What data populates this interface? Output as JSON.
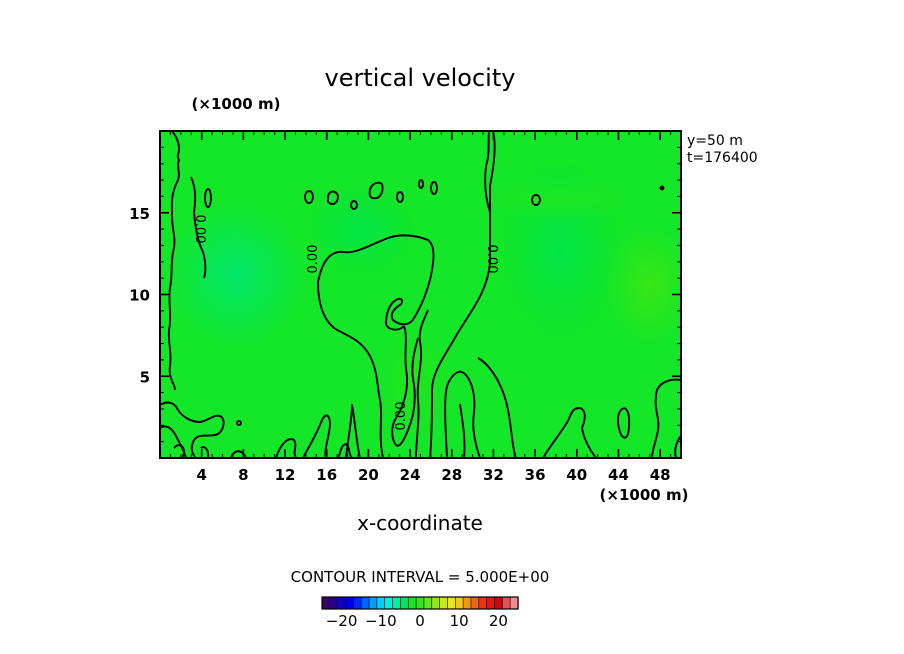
{
  "chart_data": {
    "type": "heatmap",
    "title": "vertical velocity",
    "xlabel": "x-coordinate",
    "x_unit": "(×1000 m)",
    "y_unit": "(×1000 m)",
    "xlim": [
      0,
      50
    ],
    "ylim": [
      0,
      20
    ],
    "xticks": [
      4,
      8,
      12,
      16,
      20,
      24,
      28,
      32,
      36,
      40,
      44,
      48
    ],
    "yticks": [
      5,
      10,
      15
    ],
    "info": [
      "y=50  m",
      "t=176400"
    ],
    "contour_interval_label": "CONTOUR INTERVAL = 5.000E+00",
    "contour_label": "0.00",
    "colorbar": {
      "range": [
        -25,
        25
      ],
      "tick_values": [
        -20,
        -10,
        0,
        10,
        20
      ],
      "tick_labels": [
        "−20",
        "−10",
        "0",
        "10",
        "20"
      ],
      "colors": [
        "#3c0064",
        "#28008c",
        "#1400b4",
        "#0000dc",
        "#0028f0",
        "#0064ff",
        "#00a0ff",
        "#00d2ff",
        "#00f0dc",
        "#00f0a0",
        "#00e664",
        "#14e628",
        "#32e61e",
        "#64e61e",
        "#96e61e",
        "#c8e61e",
        "#e6e61e",
        "#f0c81e",
        "#f09619",
        "#f06414",
        "#f0320f",
        "#e6140a",
        "#d2000a",
        "#e65050",
        "#f08c8c"
      ]
    },
    "field_value_range": [
      -3,
      3
    ]
  }
}
